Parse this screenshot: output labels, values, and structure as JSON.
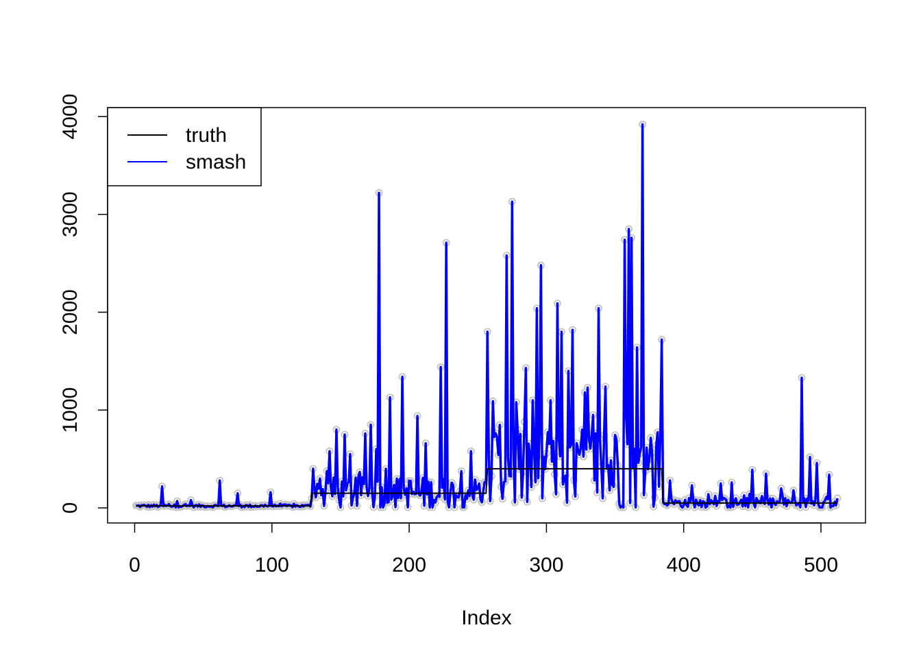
{
  "chart_data": {
    "type": "line",
    "title": "",
    "xlabel": "Index",
    "ylabel": "",
    "xlim": [
      1,
      512
    ],
    "ylim": [
      0,
      4000
    ],
    "xticks": [
      0,
      100,
      200,
      300,
      400,
      500
    ],
    "yticks": [
      0,
      1000,
      2000,
      3000,
      4000
    ],
    "grid": false,
    "legend": {
      "position": "top-left",
      "entries": [
        {
          "label": "truth",
          "color": "#000000"
        },
        {
          "label": "smash",
          "color": "#0000ff"
        }
      ]
    },
    "colors": {
      "truth": "#000000",
      "smash": "#0000ff",
      "observed": "#c8c8c8"
    },
    "series": [
      {
        "name": "truth",
        "style": "step",
        "segments": [
          {
            "x_start": 1,
            "x_end": 128,
            "y": 20
          },
          {
            "x_start": 129,
            "x_end": 256,
            "y": 150
          },
          {
            "x_start": 257,
            "x_end": 384,
            "y": 400
          },
          {
            "x_start": 385,
            "x_end": 512,
            "y": 50
          }
        ]
      },
      {
        "name": "smash",
        "style": "line",
        "background": [
          {
            "x_start": 1,
            "x_end": 128,
            "base": 20,
            "noise": 15
          },
          {
            "x_start": 129,
            "x_end": 256,
            "base": 150,
            "noise": 170
          },
          {
            "x_start": 257,
            "x_end": 384,
            "base": 400,
            "noise": 450
          },
          {
            "x_start": 385,
            "x_end": 512,
            "base": 50,
            "noise": 55
          }
        ],
        "peaks": [
          [
            20,
            220
          ],
          [
            31,
            70
          ],
          [
            41,
            80
          ],
          [
            62,
            280
          ],
          [
            75,
            150
          ],
          [
            99,
            160
          ],
          [
            130,
            400
          ],
          [
            135,
            300
          ],
          [
            142,
            580
          ],
          [
            147,
            800
          ],
          [
            153,
            750
          ],
          [
            157,
            550
          ],
          [
            168,
            760
          ],
          [
            172,
            850
          ],
          [
            176,
            600
          ],
          [
            178,
            3220
          ],
          [
            183,
            400
          ],
          [
            186,
            1130
          ],
          [
            195,
            1340
          ],
          [
            206,
            940
          ],
          [
            212,
            660
          ],
          [
            223,
            1440
          ],
          [
            227,
            2710
          ],
          [
            245,
            580
          ],
          [
            257,
            1800
          ],
          [
            261,
            1090
          ],
          [
            265,
            540
          ],
          [
            271,
            2580
          ],
          [
            275,
            3130
          ],
          [
            278,
            1080
          ],
          [
            284,
            880
          ],
          [
            290,
            1100
          ],
          [
            293,
            2040
          ],
          [
            296,
            2480
          ],
          [
            303,
            1100
          ],
          [
            308,
            2090
          ],
          [
            311,
            1800
          ],
          [
            316,
            1400
          ],
          [
            319,
            1820
          ],
          [
            328,
            1180
          ],
          [
            330,
            1230
          ],
          [
            334,
            950
          ],
          [
            338,
            2040
          ],
          [
            343,
            1240
          ],
          [
            351,
            700
          ],
          [
            357,
            2740
          ],
          [
            360,
            2850
          ],
          [
            362,
            2760
          ],
          [
            366,
            1640
          ],
          [
            370,
            3920
          ],
          [
            375,
            500
          ],
          [
            380,
            640
          ],
          [
            384,
            1720
          ],
          [
            390,
            280
          ],
          [
            406,
            230
          ],
          [
            418,
            140
          ],
          [
            427,
            250
          ],
          [
            435,
            260
          ],
          [
            450,
            390
          ],
          [
            460,
            350
          ],
          [
            471,
            200
          ],
          [
            480,
            180
          ],
          [
            486,
            1330
          ],
          [
            492,
            520
          ],
          [
            497,
            460
          ],
          [
            506,
            340
          ]
        ]
      }
    ]
  }
}
